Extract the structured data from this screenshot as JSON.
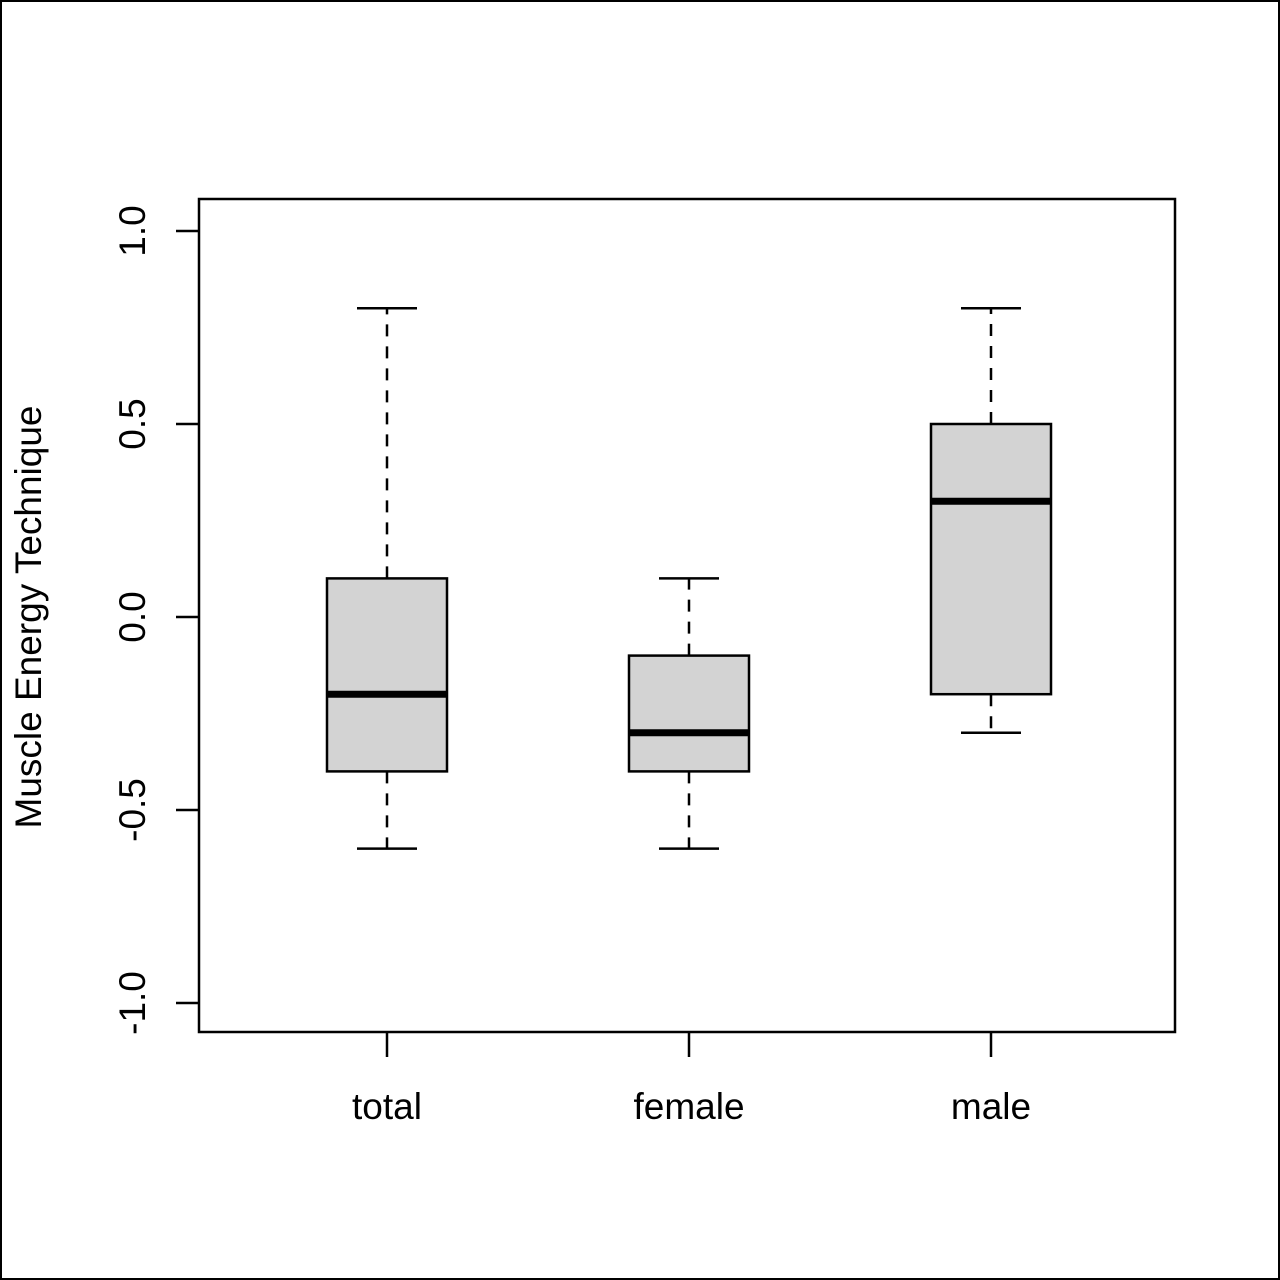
{
  "chart_data": {
    "type": "boxplot",
    "title": "",
    "xlabel": "",
    "ylabel": "Muscle Energy Technique",
    "ylim": [
      -1.08,
      1.08
    ],
    "yticks": [
      {
        "value": -1.0,
        "label": "-1.0"
      },
      {
        "value": -0.5,
        "label": "-0.5"
      },
      {
        "value": 0.0,
        "label": "0.0"
      },
      {
        "value": 0.5,
        "label": "0.5"
      },
      {
        "value": 1.0,
        "label": "1.0"
      }
    ],
    "grid": false,
    "legend": "none",
    "colors": {
      "box_fill": "#d3d3d3",
      "stroke": "#000000"
    },
    "categories": [
      "total",
      "female",
      "male"
    ],
    "boxes": [
      {
        "category": "total",
        "whisker_low": -0.6,
        "q1": -0.4,
        "median": -0.2,
        "q3": 0.1,
        "whisker_high": 0.8
      },
      {
        "category": "female",
        "whisker_low": -0.6,
        "q1": -0.4,
        "median": -0.3,
        "q3": -0.1,
        "whisker_high": 0.1
      },
      {
        "category": "male",
        "whisker_low": -0.3,
        "q1": -0.2,
        "median": 0.3,
        "q3": 0.5,
        "whisker_high": 0.8
      }
    ]
  }
}
